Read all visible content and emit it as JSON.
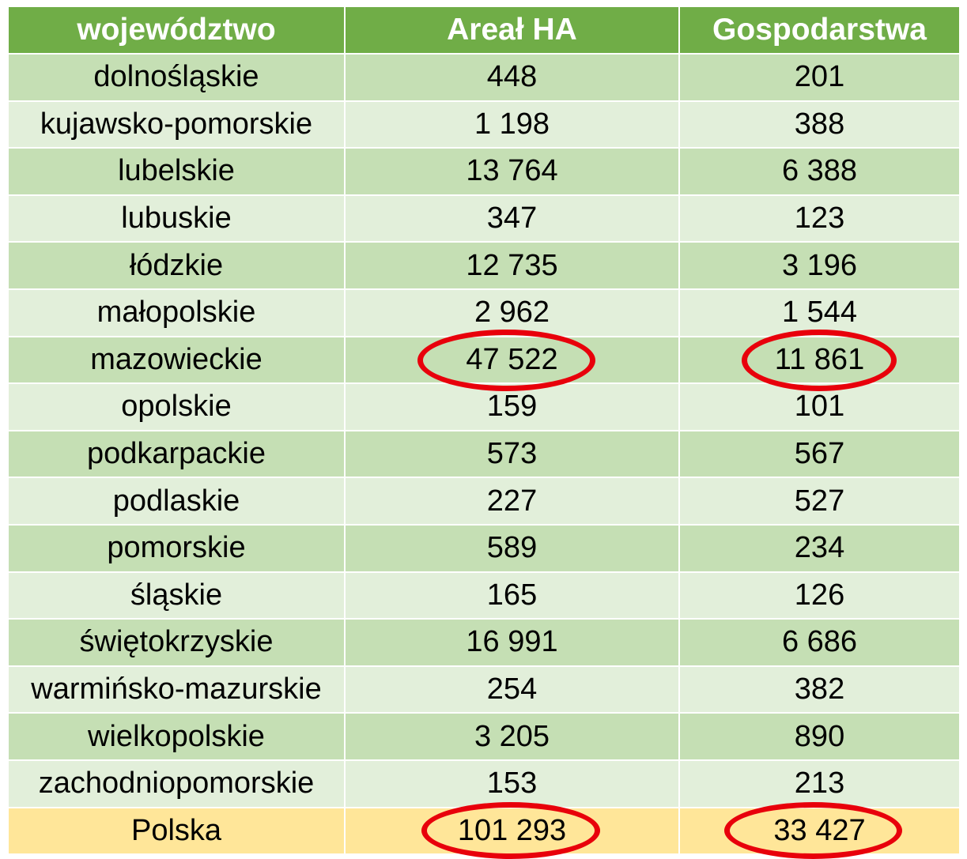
{
  "table": {
    "headers": [
      "województwo",
      "Areał HA",
      "Gospodarstwa"
    ],
    "rows": [
      [
        "dolnośląskie",
        "448",
        "201"
      ],
      [
        "kujawsko-pomorskie",
        "1 198",
        "388"
      ],
      [
        "lubelskie",
        "13 764",
        "6 388"
      ],
      [
        "lubuskie",
        "347",
        "123"
      ],
      [
        "łódzkie",
        "12 735",
        "3 196"
      ],
      [
        "małopolskie",
        "2 962",
        "1 544"
      ],
      [
        "mazowieckie",
        "47 522",
        "11 861"
      ],
      [
        "opolskie",
        "159",
        "101"
      ],
      [
        "podkarpackie",
        "573",
        "567"
      ],
      [
        "podlaskie",
        "227",
        "527"
      ],
      [
        "pomorskie",
        "589",
        "234"
      ],
      [
        "śląskie",
        "165",
        "126"
      ],
      [
        "świętokrzyskie",
        "16 991",
        "6 686"
      ],
      [
        "warmińsko-mazurskie",
        "254",
        "382"
      ],
      [
        "wielkopolskie",
        "3 205",
        "890"
      ],
      [
        "zachodniopomorskie",
        "153",
        "213"
      ]
    ],
    "total": [
      "Polska",
      "101 293",
      "33 427"
    ]
  },
  "colors": {
    "header_bg": "#70ad47",
    "row_dark": "#c5dfb4",
    "row_light": "#e2efda",
    "total_bg": "#ffe699",
    "highlight_ring": "#e8000b"
  }
}
